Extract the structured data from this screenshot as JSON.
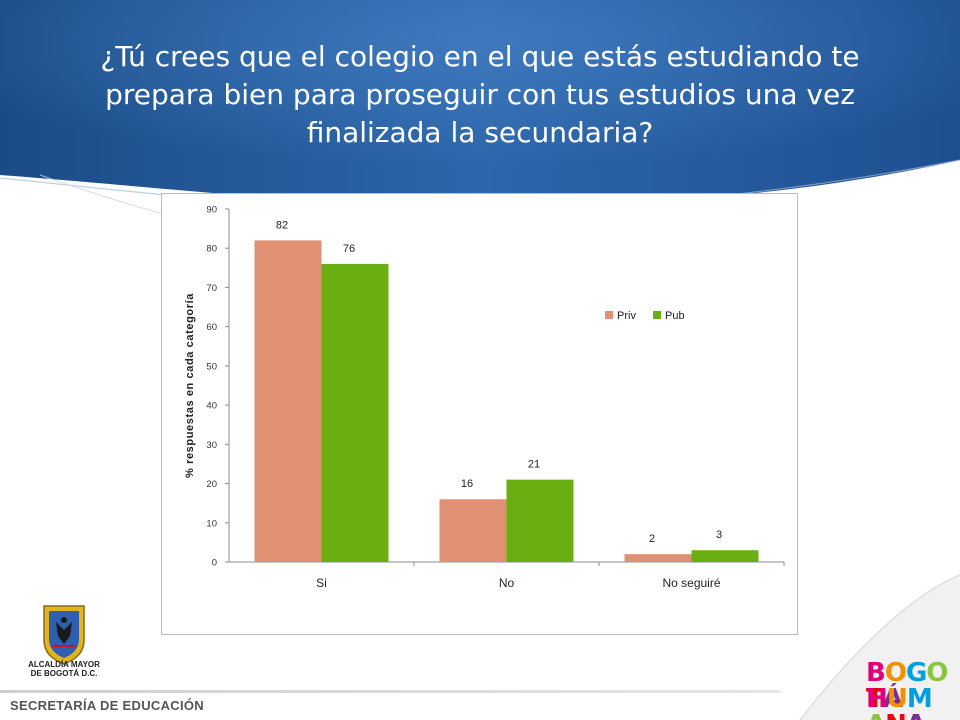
{
  "slide": {
    "title": "¿Tú crees que el colegio en el que estás estudiando te prepara bien para proseguir con tus estudios una vez finalizada la secundaria?"
  },
  "chart_data": {
    "type": "bar",
    "title": "",
    "categories": [
      "Si",
      "No",
      "No seguiré"
    ],
    "series": [
      {
        "name": "Priv",
        "values": [
          82,
          16,
          2
        ],
        "color": "#E09173"
      },
      {
        "name": "Pub",
        "values": [
          76,
          21,
          3
        ],
        "color": "#6AAF11"
      }
    ],
    "xlabel": "",
    "ylabel": "% respuestas en cada categoría",
    "ylim": [
      0,
      90
    ],
    "yticks": [
      "0",
      "10",
      "20",
      "30",
      "40",
      "50",
      "60",
      "70",
      "80",
      "90"
    ],
    "data_labels": true,
    "grid": false,
    "legend_position": "right"
  },
  "footer": {
    "org_logo_text": "ALCALDÍA MAYOR DE BOGOTÁ D.C.",
    "department": "SECRETARÍA DE EDUCACIÓN",
    "brand_top": "BOGOTÁ",
    "brand_bottom": "HUMANA"
  },
  "colors": {
    "header_blue": "#1F4E8C",
    "header_light": "#3A74B8",
    "priv": "#E09173",
    "pub": "#6AAF11"
  }
}
